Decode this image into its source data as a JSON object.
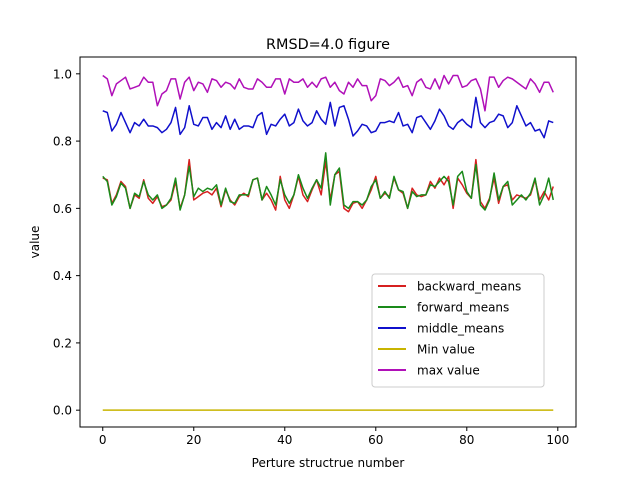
{
  "chart_data": {
    "type": "line",
    "title": "RMSD=4.0 figure",
    "xlabel": "Perture structrue number",
    "ylabel": "value",
    "xlim": [
      -5,
      104
    ],
    "ylim": [
      -0.05,
      1.05
    ],
    "xticks": [
      0,
      20,
      40,
      60,
      80,
      100
    ],
    "xtick_labels": [
      "0",
      "20",
      "40",
      "60",
      "80",
      "100"
    ],
    "yticks": [
      0.0,
      0.2,
      0.4,
      0.6,
      0.8,
      1.0
    ],
    "ytick_labels": [
      "0.0",
      "0.2",
      "0.4",
      "0.6",
      "0.8",
      "1.0"
    ],
    "legend_position": "lower-right",
    "grid": false,
    "series": [
      {
        "name": "backward_means",
        "color": "#d62020",
        "values": [
          0.69,
          0.685,
          0.615,
          0.64,
          0.68,
          0.665,
          0.6,
          0.64,
          0.63,
          0.685,
          0.63,
          0.615,
          0.635,
          0.605,
          0.61,
          0.625,
          0.68,
          0.6,
          0.64,
          0.745,
          0.625,
          0.635,
          0.645,
          0.65,
          0.64,
          0.66,
          0.605,
          0.655,
          0.625,
          0.61,
          0.635,
          0.645,
          0.635,
          0.685,
          0.69,
          0.625,
          0.645,
          0.625,
          0.595,
          0.695,
          0.625,
          0.6,
          0.64,
          0.695,
          0.64,
          0.62,
          0.655,
          0.685,
          0.64,
          0.74,
          0.625,
          0.7,
          0.71,
          0.6,
          0.59,
          0.615,
          0.62,
          0.6,
          0.625,
          0.655,
          0.695,
          0.63,
          0.645,
          0.635,
          0.69,
          0.655,
          0.645,
          0.6,
          0.66,
          0.64,
          0.635,
          0.64,
          0.68,
          0.66,
          0.69,
          0.67,
          0.695,
          0.6,
          0.69,
          0.67,
          0.645,
          0.63,
          0.745,
          0.62,
          0.6,
          0.63,
          0.69,
          0.615,
          0.665,
          0.67,
          0.625,
          0.64,
          0.635,
          0.63,
          0.64,
          0.685,
          0.625,
          0.65,
          0.625,
          0.665
        ]
      },
      {
        "name": "forward_means",
        "color": "#1a8a1a",
        "values": [
          0.695,
          0.68,
          0.61,
          0.635,
          0.675,
          0.66,
          0.6,
          0.645,
          0.635,
          0.68,
          0.64,
          0.625,
          0.64,
          0.6,
          0.61,
          0.63,
          0.69,
          0.595,
          0.64,
          0.725,
          0.635,
          0.66,
          0.65,
          0.66,
          0.655,
          0.67,
          0.61,
          0.66,
          0.62,
          0.615,
          0.64,
          0.64,
          0.64,
          0.685,
          0.69,
          0.625,
          0.665,
          0.64,
          0.61,
          0.685,
          0.64,
          0.615,
          0.64,
          0.7,
          0.66,
          0.63,
          0.66,
          0.685,
          0.66,
          0.765,
          0.61,
          0.7,
          0.72,
          0.61,
          0.6,
          0.62,
          0.62,
          0.61,
          0.625,
          0.665,
          0.685,
          0.63,
          0.65,
          0.63,
          0.695,
          0.655,
          0.65,
          0.6,
          0.65,
          0.635,
          0.64,
          0.64,
          0.67,
          0.665,
          0.68,
          0.695,
          0.68,
          0.61,
          0.695,
          0.71,
          0.65,
          0.63,
          0.73,
          0.61,
          0.595,
          0.625,
          0.705,
          0.625,
          0.665,
          0.68,
          0.61,
          0.625,
          0.64,
          0.625,
          0.645,
          0.69,
          0.61,
          0.64,
          0.69,
          0.625
        ]
      },
      {
        "name": "middle_means",
        "color": "#1010cc",
        "values": [
          0.89,
          0.885,
          0.83,
          0.85,
          0.885,
          0.855,
          0.825,
          0.855,
          0.845,
          0.865,
          0.845,
          0.845,
          0.84,
          0.825,
          0.835,
          0.855,
          0.9,
          0.82,
          0.84,
          0.905,
          0.85,
          0.845,
          0.87,
          0.87,
          0.835,
          0.855,
          0.84,
          0.875,
          0.835,
          0.865,
          0.835,
          0.845,
          0.845,
          0.84,
          0.875,
          0.885,
          0.82,
          0.85,
          0.845,
          0.865,
          0.88,
          0.845,
          0.855,
          0.895,
          0.86,
          0.845,
          0.855,
          0.89,
          0.865,
          0.85,
          0.915,
          0.845,
          0.9,
          0.905,
          0.865,
          0.815,
          0.83,
          0.85,
          0.845,
          0.825,
          0.83,
          0.855,
          0.855,
          0.86,
          0.855,
          0.885,
          0.845,
          0.85,
          0.825,
          0.87,
          0.875,
          0.855,
          0.835,
          0.86,
          0.895,
          0.875,
          0.845,
          0.835,
          0.855,
          0.865,
          0.85,
          0.84,
          0.93,
          0.855,
          0.84,
          0.855,
          0.86,
          0.88,
          0.875,
          0.84,
          0.855,
          0.905,
          0.875,
          0.845,
          0.855,
          0.83,
          0.835,
          0.81,
          0.86,
          0.855
        ]
      },
      {
        "name": "Min value",
        "color": "#c8b400",
        "values": [
          0.0,
          0.0,
          0.0,
          0.0,
          0.0,
          0.0,
          0.0,
          0.0,
          0.0,
          0.0,
          0.0,
          0.0,
          0.0,
          0.0,
          0.0,
          0.0,
          0.0,
          0.0,
          0.0,
          0.0,
          0.0,
          0.0,
          0.0,
          0.0,
          0.0,
          0.0,
          0.0,
          0.0,
          0.0,
          0.0,
          0.0,
          0.0,
          0.0,
          0.0,
          0.0,
          0.0,
          0.0,
          0.0,
          0.0,
          0.0,
          0.0,
          0.0,
          0.0,
          0.0,
          0.0,
          0.0,
          0.0,
          0.0,
          0.0,
          0.0,
          0.0,
          0.0,
          0.0,
          0.0,
          0.0,
          0.0,
          0.0,
          0.0,
          0.0,
          0.0,
          0.0,
          0.0,
          0.0,
          0.0,
          0.0,
          0.0,
          0.0,
          0.0,
          0.0,
          0.0,
          0.0,
          0.0,
          0.0,
          0.0,
          0.0,
          0.0,
          0.0,
          0.0,
          0.0,
          0.0,
          0.0,
          0.0,
          0.0,
          0.0,
          0.0,
          0.0,
          0.0,
          0.0,
          0.0,
          0.0,
          0.0,
          0.0,
          0.0,
          0.0,
          0.0,
          0.0,
          0.0,
          0.0,
          0.0,
          0.0
        ]
      },
      {
        "name": "max value",
        "color": "#b010b8",
        "values": [
          0.995,
          0.985,
          0.935,
          0.97,
          0.98,
          0.99,
          0.955,
          0.96,
          0.965,
          0.99,
          0.975,
          0.975,
          0.905,
          0.94,
          0.95,
          0.985,
          0.985,
          0.925,
          0.975,
          0.99,
          0.95,
          0.975,
          0.97,
          0.945,
          0.985,
          0.98,
          0.96,
          0.975,
          0.97,
          0.955,
          0.985,
          0.96,
          0.955,
          0.955,
          0.985,
          0.975,
          0.96,
          0.96,
          0.985,
          0.985,
          0.94,
          0.985,
          0.975,
          0.975,
          0.985,
          0.96,
          0.975,
          0.96,
          0.985,
          0.99,
          0.96,
          0.975,
          0.95,
          0.94,
          0.975,
          0.96,
          0.985,
          0.965,
          0.965,
          0.92,
          0.935,
          0.985,
          0.98,
          0.965,
          0.975,
          0.99,
          0.96,
          0.965,
          0.935,
          0.975,
          0.985,
          0.96,
          0.955,
          0.985,
          0.955,
          0.995,
          0.97,
          0.995,
          0.995,
          0.96,
          0.965,
          0.98,
          0.985,
          0.955,
          0.89,
          0.99,
          0.99,
          0.96,
          0.98,
          0.99,
          0.985,
          0.975,
          0.965,
          0.955,
          0.985,
          0.97,
          0.945,
          0.975,
          0.975,
          0.945
        ]
      }
    ]
  }
}
